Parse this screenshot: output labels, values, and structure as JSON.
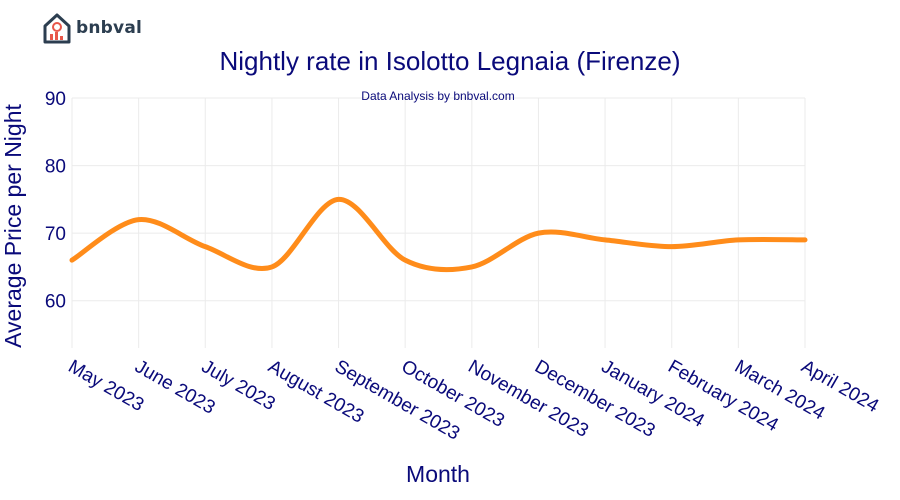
{
  "brand": {
    "name": "bnbval"
  },
  "chart_data": {
    "type": "line",
    "title": "Nightly rate in Isolotto Legnaia (Firenze)",
    "subtitle": "Data Analysis by bnbval.com",
    "xlabel": "Month",
    "ylabel": "Average Price per Night",
    "categories": [
      "May 2023",
      "June 2023",
      "July 2023",
      "August 2023",
      "September 2023",
      "October 2023",
      "November 2023",
      "December 2023",
      "January 2024",
      "February 2024",
      "March 2024",
      "April 2024"
    ],
    "series": [
      {
        "values": [
          66,
          72,
          68,
          65,
          75,
          66,
          65,
          70,
          69,
          68,
          69,
          69
        ]
      }
    ],
    "yticks": [
      60,
      70,
      80,
      90
    ],
    "ylim": [
      53,
      90
    ],
    "grid": true,
    "line_color": "#ff8c1a",
    "text_color": "#0a0a7a",
    "grid_color": "#ebebeb"
  }
}
